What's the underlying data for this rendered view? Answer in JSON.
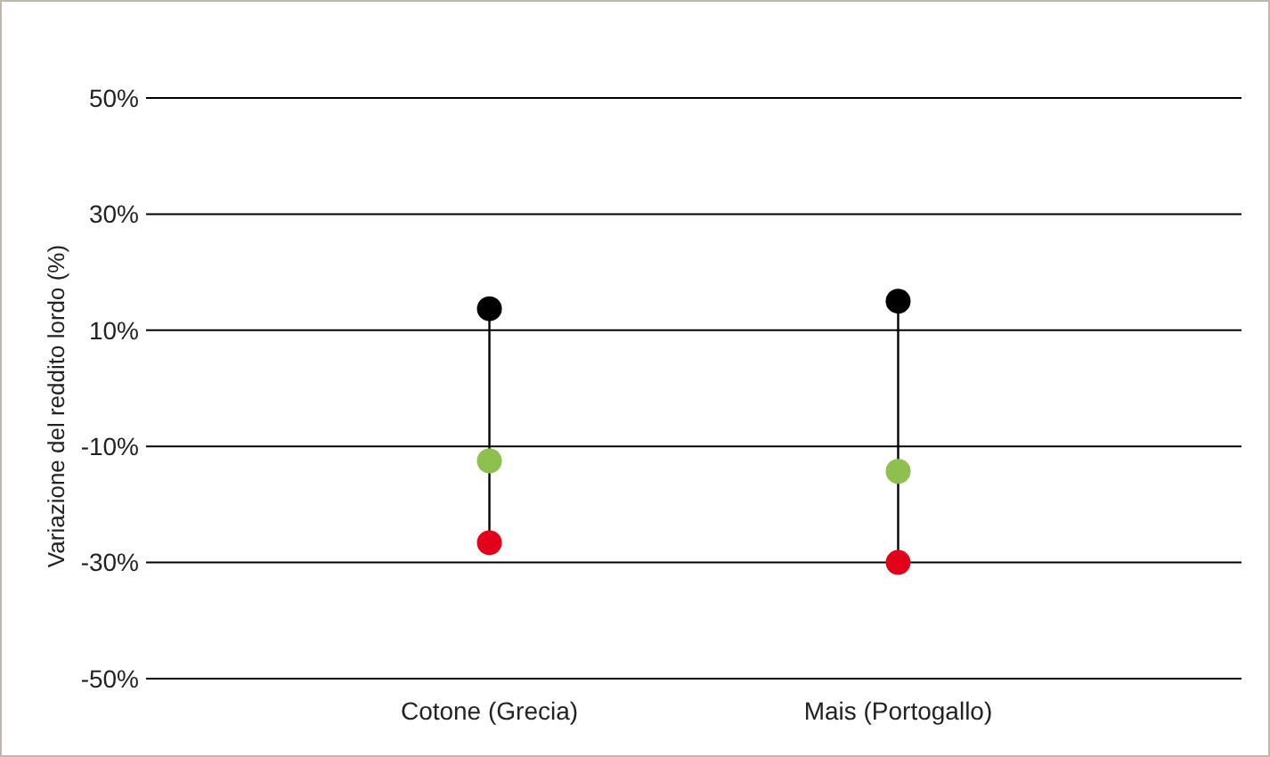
{
  "chart_data": {
    "type": "scatter",
    "ylabel": "Variazione del reddito lordo (%)",
    "categories": [
      "Cotone (Grecia)",
      "Mais (Portogallo)"
    ],
    "series": [
      {
        "color": "#000000",
        "values": [
          13.7,
          15
        ]
      },
      {
        "color": "#8dc04f",
        "values": [
          -12.5,
          -14.3
        ]
      },
      {
        "color": "#e3001b",
        "values": [
          -26.6,
          -30
        ]
      }
    ],
    "ylim": [
      -50,
      50
    ],
    "yticks": [
      {
        "value": -50,
        "label": "-50%"
      },
      {
        "value": -30,
        "label": "-30%"
      },
      {
        "value": -10,
        "label": "-10%"
      },
      {
        "value": 10,
        "label": "10%"
      },
      {
        "value": 30,
        "label": "30%"
      },
      {
        "value": 50,
        "label": "50%"
      }
    ],
    "grid": "y",
    "marker": "circle"
  }
}
